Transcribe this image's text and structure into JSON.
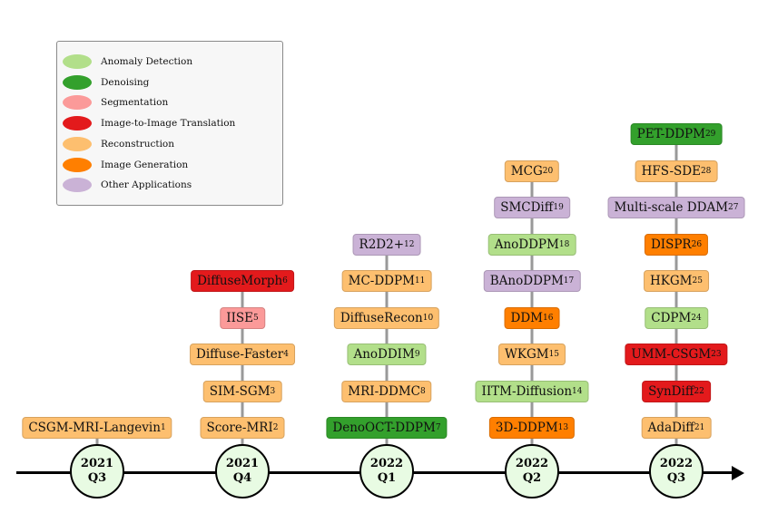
{
  "colors": {
    "anomaly": "#b2df8a",
    "denoising": "#33a02c",
    "segmentation": "#fb9a99",
    "translation": "#e31a1c",
    "reconstruction": "#fdbf6f",
    "generation": "#ff7f00",
    "other": "#cab2d6"
  },
  "legend": [
    {
      "label": "Anomaly Detection",
      "color": "#b2df8a"
    },
    {
      "label": "Denoising",
      "color": "#33a02c"
    },
    {
      "label": "Segmentation",
      "color": "#fb9a99"
    },
    {
      "label": "Image-to-Image Translation",
      "color": "#e31a1c"
    },
    {
      "label": "Reconstruction",
      "color": "#fdbf6f"
    },
    {
      "label": "Image Generation",
      "color": "#ff7f00"
    },
    {
      "label": "Other Applications",
      "color": "#cab2d6"
    }
  ],
  "periods": [
    {
      "year": "2021",
      "quarter": "Q3",
      "papers": [
        {
          "name": "CSGM-MRI-Langevin",
          "ref": "1",
          "color": "#fdbf6f"
        }
      ]
    },
    {
      "year": "2021",
      "quarter": "Q4",
      "papers": [
        {
          "name": "Score-MRI",
          "ref": "2",
          "color": "#fdbf6f"
        },
        {
          "name": "SIM-SGM",
          "ref": "3",
          "color": "#fdbf6f"
        },
        {
          "name": "Diffuse-Faster",
          "ref": "4",
          "color": "#fdbf6f"
        },
        {
          "name": "IISE",
          "ref": "5",
          "color": "#fb9a99"
        },
        {
          "name": "DiffuseMorph",
          "ref": "6",
          "color": "#e31a1c"
        }
      ]
    },
    {
      "year": "2022",
      "quarter": "Q1",
      "papers": [
        {
          "name": "DenoOCT-DDPM",
          "ref": "7",
          "color": "#33a02c"
        },
        {
          "name": "MRI-DDMC",
          "ref": "8",
          "color": "#fdbf6f"
        },
        {
          "name": "AnoDDIM",
          "ref": "9",
          "color": "#b2df8a"
        },
        {
          "name": "DiffuseRecon",
          "ref": "10",
          "color": "#fdbf6f"
        },
        {
          "name": "MC-DDPM",
          "ref": "11",
          "color": "#fdbf6f"
        },
        {
          "name": "R2D2+",
          "ref": "12",
          "color": "#cab2d6"
        }
      ]
    },
    {
      "year": "2022",
      "quarter": "Q2",
      "papers": [
        {
          "name": "3D-DDPM",
          "ref": "13",
          "color": "#ff7f00"
        },
        {
          "name": "IITM-Diffusion",
          "ref": "14",
          "color": "#b2df8a"
        },
        {
          "name": "WKGM",
          "ref": "15",
          "color": "#fdbf6f"
        },
        {
          "name": "DDM",
          "ref": "16",
          "color": "#ff7f00"
        },
        {
          "name": "BAnoDDPM",
          "ref": "17",
          "color": "#cab2d6"
        },
        {
          "name": "AnoDDPM",
          "ref": "18",
          "color": "#b2df8a"
        },
        {
          "name": "SMCDiff",
          "ref": "19",
          "color": "#cab2d6"
        },
        {
          "name": "MCG",
          "ref": "20",
          "color": "#fdbf6f"
        }
      ]
    },
    {
      "year": "2022",
      "quarter": "Q3",
      "papers": [
        {
          "name": "AdaDiff",
          "ref": "21",
          "color": "#fdbf6f"
        },
        {
          "name": "SynDiff",
          "ref": "22",
          "color": "#e31a1c"
        },
        {
          "name": "UMM-CSGM",
          "ref": "23",
          "color": "#e31a1c"
        },
        {
          "name": "CDPM",
          "ref": "24",
          "color": "#b2df8a"
        },
        {
          "name": "HKGM",
          "ref": "25",
          "color": "#fdbf6f"
        },
        {
          "name": "DISPR",
          "ref": "26",
          "color": "#ff7f00"
        },
        {
          "name": "Multi-scale DDAM",
          "ref": "27",
          "color": "#cab2d6"
        },
        {
          "name": "HFS-SDE",
          "ref": "28",
          "color": "#fdbf6f"
        },
        {
          "name": "PET-DDPM",
          "ref": "29",
          "color": "#33a02c"
        }
      ]
    }
  ]
}
